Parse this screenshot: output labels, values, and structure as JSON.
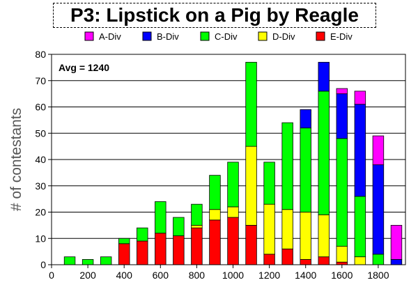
{
  "chart_data": {
    "type": "bar",
    "stacked": true,
    "title": "P3: Lipstick on a Pig by Reagle",
    "ylabel": "# of contestants",
    "xlabel": "",
    "annotation": "Avg = 1240",
    "x": [
      100,
      200,
      300,
      400,
      500,
      600,
      700,
      800,
      900,
      1000,
      1100,
      1200,
      1300,
      1400,
      1500,
      1600,
      1700,
      1800,
      1900
    ],
    "xlim": [
      0,
      1950
    ],
    "x_ticks": [
      0,
      200,
      400,
      600,
      800,
      1000,
      1200,
      1400,
      1600,
      1800
    ],
    "ylim": [
      0,
      80
    ],
    "y_ticks": [
      0,
      10,
      20,
      30,
      40,
      50,
      60,
      70,
      80
    ],
    "grid": "horizontal",
    "legend_position": "top",
    "series": [
      {
        "name": "E-Div",
        "color": "#ff0000",
        "values": [
          0,
          0,
          0,
          8,
          9,
          12,
          11,
          14,
          17,
          18,
          15,
          4,
          6,
          2,
          3,
          1,
          0,
          0,
          0
        ]
      },
      {
        "name": "D-Div",
        "color": "#ffff00",
        "values": [
          0,
          0,
          0,
          0,
          0,
          0,
          0,
          1,
          4,
          4,
          30,
          19,
          15,
          18,
          16,
          6,
          3,
          0,
          0
        ]
      },
      {
        "name": "C-Div",
        "color": "#00ff00",
        "values": [
          3,
          2,
          3,
          2,
          5,
          12,
          7,
          8,
          13,
          17,
          32,
          16,
          33,
          32,
          47,
          41,
          23,
          4,
          0
        ]
      },
      {
        "name": "B-Div",
        "color": "#0000ff",
        "values": [
          0,
          0,
          0,
          0,
          0,
          0,
          0,
          0,
          0,
          0,
          0,
          0,
          0,
          7,
          11,
          17,
          35,
          34,
          2
        ]
      },
      {
        "name": "A-Div",
        "color": "#ff00ff",
        "values": [
          0,
          0,
          0,
          0,
          0,
          0,
          0,
          0,
          0,
          0,
          0,
          0,
          0,
          0,
          0,
          2,
          5,
          11,
          13
        ]
      }
    ],
    "legend_order": [
      "A-Div",
      "B-Div",
      "C-Div",
      "D-Div",
      "E-Div"
    ]
  }
}
